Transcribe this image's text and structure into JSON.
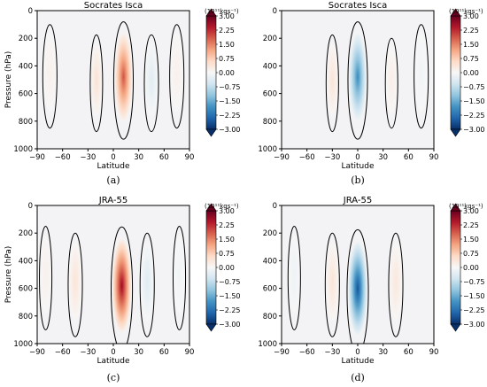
{
  "chart_data": [
    {
      "type": "heatmap",
      "panel_label": "(a)",
      "title": "Socrates Isca",
      "xlabel": "Latitude",
      "ylabel": "Pressure (hPa)",
      "xlim": [
        -90,
        90
      ],
      "ylim": [
        1000,
        0
      ],
      "xticks": [
        -90,
        -60,
        -30,
        0,
        30,
        60,
        90
      ],
      "yticks": [
        0,
        200,
        400,
        600,
        800,
        1000
      ],
      "colorbar_unit": "(10¹¹kgs⁻¹)",
      "colorbar_ticks": [
        "3.00",
        "2.25",
        "1.50",
        "0.75",
        "0.00",
        "-0.75",
        "-1.50",
        "-2.25",
        "-3.00"
      ],
      "cells": [
        {
          "lat": 12,
          "p": 480,
          "value": 1.9,
          "dlat": 11,
          "dp": 340
        },
        {
          "lat": -20,
          "p": 500,
          "value": 0.45,
          "dlat": 7,
          "dp": 280
        },
        {
          "lat": 45,
          "p": 500,
          "value": -0.35,
          "dlat": 8,
          "dp": 280
        },
        {
          "lat": 75,
          "p": 450,
          "value": 0.15,
          "dlat": 8,
          "dp": 300
        },
        {
          "lat": -75,
          "p": 450,
          "value": 0.15,
          "dlat": 8,
          "dp": 300
        }
      ]
    },
    {
      "type": "heatmap",
      "panel_label": "(b)",
      "title": "Socrates Isca",
      "xlabel": "Latitude",
      "ylabel": "",
      "xlim": [
        -90,
        90
      ],
      "ylim": [
        1000,
        0
      ],
      "xticks": [
        -90,
        -60,
        -30,
        0,
        30,
        60,
        90
      ],
      "yticks": [
        0,
        200,
        400,
        600,
        800,
        1000
      ],
      "colorbar_unit": "(10¹¹kgs⁻¹)",
      "colorbar_ticks": [
        "3.00",
        "2.25",
        "1.50",
        "0.75",
        "0.00",
        "-0.75",
        "-1.50",
        "-2.25",
        "-3.00"
      ],
      "cells": [
        {
          "lat": 0,
          "p": 480,
          "value": -1.9,
          "dlat": 11,
          "dp": 340
        },
        {
          "lat": -30,
          "p": 500,
          "value": 0.4,
          "dlat": 7,
          "dp": 280
        },
        {
          "lat": 40,
          "p": 500,
          "value": 0.2,
          "dlat": 7,
          "dp": 260
        },
        {
          "lat": 75,
          "p": 450,
          "value": -0.1,
          "dlat": 8,
          "dp": 300
        }
      ]
    },
    {
      "type": "heatmap",
      "panel_label": "(c)",
      "title": "JRA-55",
      "xlabel": "Latitude",
      "ylabel": "Pressure (hPa)",
      "xlim": [
        -90,
        90
      ],
      "ylim": [
        1000,
        0
      ],
      "xticks": [
        -90,
        -60,
        -30,
        0,
        30,
        60,
        90
      ],
      "yticks": [
        0,
        200,
        400,
        600,
        800,
        1000
      ],
      "colorbar_unit": "(10¹¹kgs⁻¹)",
      "colorbar_ticks": [
        "3.00",
        "2.25",
        "1.50",
        "0.75",
        "0.00",
        "-0.75",
        "-1.50",
        "-2.25",
        "-3.00"
      ],
      "cells": [
        {
          "lat": 10,
          "p": 580,
          "value": 2.6,
          "dlat": 12,
          "dp": 360
        },
        {
          "lat": -45,
          "p": 550,
          "value": 0.4,
          "dlat": 8,
          "dp": 300
        },
        {
          "lat": 40,
          "p": 550,
          "value": -0.4,
          "dlat": 8,
          "dp": 300
        },
        {
          "lat": -80,
          "p": 500,
          "value": 0.15,
          "dlat": 7,
          "dp": 300
        },
        {
          "lat": 78,
          "p": 500,
          "value": -0.1,
          "dlat": 7,
          "dp": 300
        }
      ]
    },
    {
      "type": "heatmap",
      "panel_label": "(d)",
      "title": "JRA-55",
      "xlabel": "Latitude",
      "ylabel": "",
      "xlim": [
        -90,
        90
      ],
      "ylim": [
        1000,
        0
      ],
      "xticks": [
        -90,
        -60,
        -30,
        0,
        30,
        60,
        90
      ],
      "yticks": [
        0,
        200,
        400,
        600,
        800,
        1000
      ],
      "colorbar_unit": "(10¹¹kgs⁻¹)",
      "colorbar_ticks": [
        "3.00",
        "2.25",
        "1.50",
        "0.75",
        "0.00",
        "-0.75",
        "-1.50",
        "-2.25",
        "-3.00"
      ],
      "cells": [
        {
          "lat": 0,
          "p": 600,
          "value": -2.6,
          "dlat": 12,
          "dp": 360
        },
        {
          "lat": -30,
          "p": 550,
          "value": 0.4,
          "dlat": 8,
          "dp": 300
        },
        {
          "lat": 45,
          "p": 550,
          "value": 0.35,
          "dlat": 8,
          "dp": 300
        },
        {
          "lat": -75,
          "p": 500,
          "value": -0.15,
          "dlat": 7,
          "dp": 300
        }
      ]
    }
  ],
  "colors": {
    "colormap": [
      "#08306b",
      "#2166ac",
      "#4393c3",
      "#92c5de",
      "#d1e5f0",
      "#f7f7f7",
      "#fddbc7",
      "#f4a582",
      "#d6604d",
      "#b2182b",
      "#67001f"
    ],
    "contour": "#000000"
  }
}
